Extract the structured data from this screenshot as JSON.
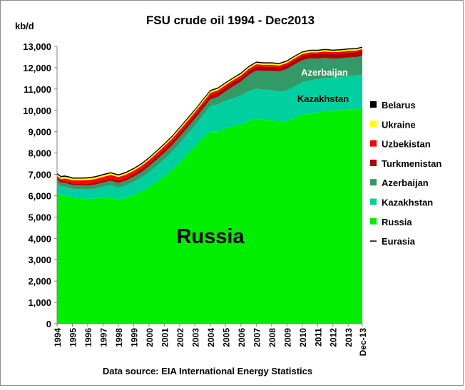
{
  "chart_data": {
    "type": "area",
    "stacked": true,
    "title": "FSU crude oil 1994 - Dec2013",
    "ylabel": "kb/d",
    "source": "Data source: EIA International Energy Statistics",
    "ylim": [
      0,
      13000
    ],
    "yticks": [
      "0",
      "1,000",
      "2,000",
      "3,000",
      "4,000",
      "5,000",
      "6,000",
      "7,000",
      "8,000",
      "9,000",
      "10,000",
      "11,000",
      "12,000",
      "13,000"
    ],
    "xticks": [
      "1994",
      "1995",
      "1996",
      "1997",
      "1998",
      "1999",
      "2000",
      "2001",
      "2002",
      "2003",
      "2004",
      "2005",
      "2006",
      "2007",
      "2008",
      "2009",
      "2010",
      "2011",
      "2012",
      "2013",
      "Dec-13"
    ],
    "x": [
      1994.0,
      1994.25,
      1994.5,
      1994.75,
      1995.0,
      1995.5,
      1996.0,
      1996.5,
      1997.0,
      1997.5,
      1998.0,
      1998.5,
      1999.0,
      1999.5,
      2000.0,
      2000.5,
      2001.0,
      2001.5,
      2002.0,
      2002.5,
      2003.0,
      2003.5,
      2004.0,
      2004.5,
      2005.0,
      2005.5,
      2006.0,
      2006.5,
      2007.0,
      2007.5,
      2008.0,
      2008.5,
      2009.0,
      2009.5,
      2010.0,
      2010.5,
      2011.0,
      2011.5,
      2012.0,
      2012.5,
      2013.0,
      2013.5,
      2013.92
    ],
    "series": [
      {
        "name": "Russia",
        "color": "#00ee00",
        "values": [
          6150,
          6000,
          6020,
          5980,
          5900,
          5880,
          5850,
          5860,
          5900,
          5950,
          5820,
          5900,
          6050,
          6200,
          6400,
          6650,
          6900,
          7200,
          7550,
          7950,
          8300,
          8700,
          9000,
          9000,
          9150,
          9250,
          9350,
          9500,
          9600,
          9550,
          9550,
          9450,
          9500,
          9650,
          9800,
          9850,
          9900,
          9950,
          10000,
          10000,
          10050,
          10050,
          10100
        ]
      },
      {
        "name": "Kazakhstan",
        "values": [
          430,
          420,
          410,
          400,
          420,
          430,
          450,
          470,
          520,
          540,
          560,
          580,
          600,
          640,
          700,
          750,
          820,
          860,
          900,
          920,
          1000,
          1050,
          1200,
          1280,
          1300,
          1320,
          1350,
          1400,
          1420,
          1420,
          1400,
          1420,
          1440,
          1480,
          1520,
          1560,
          1560,
          1560,
          1540,
          1560,
          1570,
          1580,
          1600
        ],
        "color": "#00d0a0"
      },
      {
        "name": "Azerbaijan",
        "values": [
          190,
          185,
          180,
          175,
          180,
          180,
          180,
          190,
          200,
          210,
          220,
          230,
          240,
          260,
          280,
          290,
          290,
          300,
          310,
          310,
          310,
          310,
          310,
          360,
          440,
          560,
          650,
          750,
          850,
          880,
          900,
          950,
          1000,
          1020,
          1030,
          1020,
          960,
          950,
          880,
          880,
          860,
          860,
          860
        ],
        "color": "#339966"
      },
      {
        "name": "Turkmenistan",
        "values": [
          90,
          90,
          85,
          85,
          80,
          80,
          80,
          90,
          90,
          100,
          110,
          120,
          130,
          140,
          150,
          160,
          170,
          170,
          180,
          180,
          190,
          190,
          190,
          190,
          190,
          190,
          190,
          190,
          190,
          190,
          190,
          190,
          190,
          200,
          210,
          210,
          220,
          220,
          230,
          240,
          240,
          240,
          240
        ],
        "color": "#b00000"
      },
      {
        "name": "Uzbekistan",
        "values": [
          60,
          80,
          110,
          130,
          140,
          150,
          170,
          170,
          170,
          170,
          160,
          160,
          150,
          150,
          140,
          140,
          140,
          140,
          140,
          140,
          120,
          120,
          120,
          110,
          110,
          100,
          100,
          100,
          100,
          90,
          90,
          90,
          90,
          90,
          80,
          80,
          80,
          80,
          80,
          70,
          70,
          70,
          70
        ],
        "color": "#ff0000"
      },
      {
        "name": "Ukraine",
        "values": [
          90,
          90,
          85,
          85,
          80,
          80,
          80,
          80,
          80,
          80,
          75,
          75,
          75,
          75,
          75,
          75,
          75,
          80,
          80,
          80,
          80,
          80,
          80,
          80,
          80,
          75,
          75,
          75,
          75,
          70,
          70,
          70,
          70,
          70,
          70,
          70,
          70,
          70,
          65,
          65,
          65,
          65,
          65
        ],
        "color": "#ffff00"
      },
      {
        "name": "Belarus",
        "values": [
          40,
          40,
          38,
          38,
          38,
          36,
          36,
          36,
          36,
          36,
          36,
          36,
          36,
          36,
          36,
          34,
          34,
          34,
          34,
          34,
          34,
          34,
          34,
          34,
          34,
          34,
          34,
          34,
          34,
          34,
          34,
          34,
          34,
          34,
          34,
          34,
          34,
          34,
          34,
          34,
          34,
          34,
          34
        ],
        "color": "#000000"
      }
    ],
    "legend": [
      {
        "name": "Belarus",
        "color": "#000000"
      },
      {
        "name": "Ukraine",
        "color": "#ffff00"
      },
      {
        "name": "Uzbekistan",
        "color": "#ff0000"
      },
      {
        "name": "Turkmenistan",
        "color": "#b00000"
      },
      {
        "name": "Azerbaijan",
        "color": "#339966"
      },
      {
        "name": "Kazakhstan",
        "color": "#00d0a0"
      },
      {
        "name": "Russia",
        "color": "#00ee00"
      },
      {
        "name": "Eurasia",
        "color": "#000000",
        "kind": "line"
      }
    ],
    "legend_position": "right",
    "annotations": {
      "russia": "Russia",
      "kazakhstan": "Kazakhstan",
      "azerbaijan": "Azerbaijan"
    }
  }
}
